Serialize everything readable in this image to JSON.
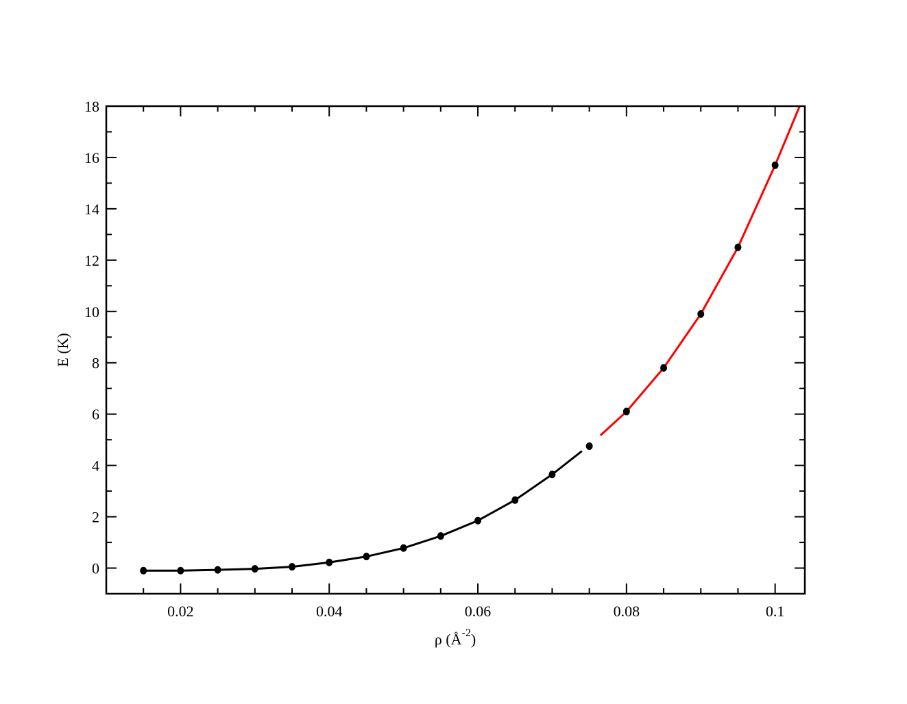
{
  "chart_data": {
    "type": "line",
    "xlabel": [
      "ρ  (Å",
      "-2",
      ")"
    ],
    "ylabel": "E  (K)",
    "xlim": [
      0.01,
      0.104
    ],
    "ylim": [
      -1,
      18
    ],
    "xticks": [
      0.02,
      0.04,
      0.06,
      0.08,
      0.1
    ],
    "xminorticks": [
      0.015,
      0.025,
      0.03,
      0.035,
      0.045,
      0.05,
      0.055,
      0.065,
      0.07,
      0.075,
      0.085,
      0.09,
      0.095
    ],
    "yticks": [
      0,
      2,
      4,
      6,
      8,
      10,
      12,
      14,
      16,
      18
    ],
    "yminorticks": [
      -1,
      1,
      3,
      5,
      7,
      9,
      11,
      13,
      15,
      17
    ],
    "series": [
      {
        "style": "line",
        "color": "#000000",
        "x": [
          0.015,
          0.02,
          0.025,
          0.03,
          0.035,
          0.04,
          0.045,
          0.05,
          0.055,
          0.06,
          0.065,
          0.07,
          0.074
        ],
        "values": [
          -0.1,
          -0.1,
          -0.07,
          -0.03,
          0.05,
          0.22,
          0.45,
          0.78,
          1.25,
          1.85,
          2.65,
          3.65,
          4.56
        ]
      },
      {
        "style": "line",
        "color": "#ff0000",
        "x": [
          0.0765,
          0.08,
          0.085,
          0.09,
          0.095,
          0.1,
          0.1033
        ],
        "values": [
          5.17,
          6.1,
          7.8,
          9.9,
          12.5,
          15.7,
          18
        ]
      },
      {
        "style": "marker",
        "color": "#000000",
        "x": [
          0.015,
          0.02,
          0.025,
          0.03,
          0.035,
          0.04,
          0.045,
          0.05,
          0.055,
          0.06,
          0.065,
          0.07,
          0.075,
          0.08,
          0.085,
          0.09,
          0.095,
          0.1
        ],
        "values": [
          -0.1,
          -0.1,
          -0.07,
          -0.03,
          0.05,
          0.22,
          0.45,
          0.78,
          1.25,
          1.85,
          2.65,
          3.65,
          4.75,
          6.1,
          7.8,
          9.9,
          12.5,
          15.7
        ]
      }
    ]
  }
}
